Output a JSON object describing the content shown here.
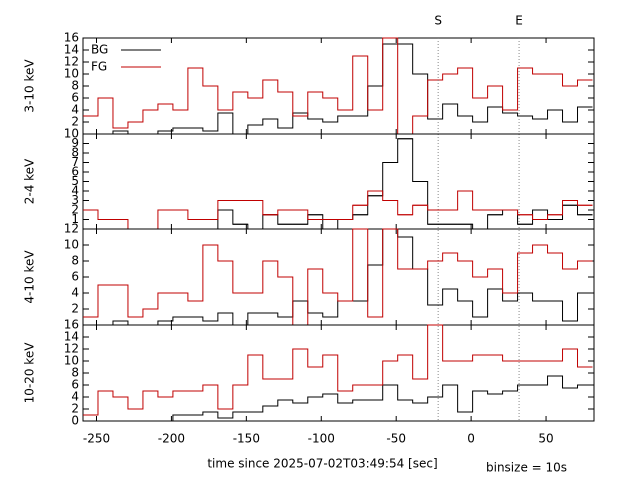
{
  "chart_data": [
    {
      "type": "histogram",
      "ylabel": "3-10 keV",
      "bins": [
        -259,
        -249,
        -239,
        -229,
        -219,
        -209,
        -199,
        -189,
        -179,
        -169,
        -159,
        -149,
        -139,
        -129,
        -119,
        -109,
        -99,
        -89,
        -79,
        -69,
        -59,
        -49,
        -39,
        -29,
        -19,
        -9,
        1,
        11,
        21,
        31,
        41,
        51,
        61,
        71,
        81
      ],
      "xlim": [
        -259,
        82
      ],
      "xticks": [
        -250,
        -200,
        -150,
        -100,
        -50,
        0,
        50
      ],
      "ylim": [
        0,
        16
      ],
      "yticks": [
        2,
        4,
        6,
        8,
        10,
        12,
        14,
        16
      ],
      "legend": "top-left",
      "markers": [
        {
          "label": "S",
          "x": -22
        },
        {
          "label": "E",
          "x": 32
        }
      ],
      "series": [
        {
          "name": "BG",
          "color": "#000000",
          "values": [
            0,
            0,
            0.5,
            0,
            0,
            0.5,
            1,
            1,
            0.5,
            3.5,
            0,
            1.5,
            2.5,
            1,
            3.5,
            2.5,
            2,
            3,
            3,
            8,
            15,
            15,
            10,
            2.5,
            5,
            3,
            2,
            4.5,
            3.5,
            3,
            2.5,
            4,
            2,
            4.5
          ]
        },
        {
          "name": "FG",
          "color": "#c00000",
          "values": [
            3,
            6,
            1,
            2,
            4,
            5,
            4,
            11,
            8,
            4,
            7,
            6,
            9,
            7,
            3,
            7,
            6,
            4,
            13,
            4,
            16,
            0,
            3,
            9,
            10,
            11,
            6,
            8,
            4,
            11,
            10,
            10,
            8,
            9
          ]
        }
      ]
    },
    {
      "type": "histogram",
      "ylabel": "2-4 keV",
      "bins": [
        -259,
        -249,
        -239,
        -229,
        -219,
        -209,
        -199,
        -189,
        -179,
        -169,
        -159,
        -149,
        -139,
        -129,
        -119,
        -109,
        -99,
        -89,
        -79,
        -69,
        -59,
        -49,
        -39,
        -29,
        -19,
        -9,
        1,
        11,
        21,
        31,
        41,
        51,
        61,
        71,
        81
      ],
      "xlim": [
        -259,
        82
      ],
      "xticks": [
        -250,
        -200,
        -150,
        -100,
        -50,
        0,
        50
      ],
      "ylim": [
        0,
        10
      ],
      "yticks": [
        1,
        2,
        3,
        4,
        5,
        6,
        7,
        8,
        9,
        10
      ],
      "series": [
        {
          "color": "#000000",
          "values": [
            0,
            0,
            0,
            0,
            0,
            0,
            0,
            0,
            0,
            2,
            0.5,
            0,
            1.5,
            0.5,
            0.5,
            1.5,
            0,
            1,
            1.5,
            3.5,
            7,
            9.5,
            5,
            0.5,
            0.5,
            0.5,
            0,
            1.5,
            2,
            0.5,
            2,
            1,
            2.5,
            1.5
          ]
        },
        {
          "color": "#c00000",
          "values": [
            2,
            1,
            1,
            0,
            0,
            2,
            2,
            1,
            1,
            3,
            3,
            3,
            1.5,
            2,
            2,
            1,
            1,
            1,
            2.5,
            4,
            3,
            1.5,
            2.5,
            2,
            2,
            4,
            2,
            2,
            2,
            1.5,
            1,
            1.5,
            3,
            2.5
          ]
        }
      ]
    },
    {
      "type": "histogram",
      "ylabel": "4-10 keV",
      "bins": [
        -259,
        -249,
        -239,
        -229,
        -219,
        -209,
        -199,
        -189,
        -179,
        -169,
        -159,
        -149,
        -139,
        -129,
        -119,
        -109,
        -99,
        -89,
        -79,
        -69,
        -59,
        -49,
        -39,
        -29,
        -19,
        -9,
        1,
        11,
        21,
        31,
        41,
        51,
        61,
        71,
        81
      ],
      "xlim": [
        -259,
        82
      ],
      "xticks": [
        -250,
        -200,
        -150,
        -100,
        -50,
        0,
        50
      ],
      "ylim": [
        0,
        12
      ],
      "yticks": [
        2,
        4,
        6,
        8,
        10,
        12
      ],
      "series": [
        {
          "color": "#000000",
          "values": [
            0,
            0,
            0.5,
            0,
            0,
            0.5,
            1,
            1,
            0.5,
            1.5,
            0,
            1.5,
            1.5,
            1,
            3,
            1.5,
            1,
            3,
            3,
            7.5,
            12,
            11,
            7,
            2.5,
            4.5,
            3,
            1,
            4.5,
            3,
            4,
            3,
            3,
            0.5,
            4
          ]
        },
        {
          "color": "#c00000",
          "values": [
            1,
            5,
            5,
            1,
            2,
            4,
            4,
            3,
            10,
            8,
            4,
            4,
            8,
            6,
            0,
            7,
            4,
            3,
            12,
            1,
            12,
            7,
            7,
            8,
            9,
            8,
            6,
            7,
            4,
            9,
            10,
            9,
            7,
            8
          ]
        }
      ]
    },
    {
      "type": "histogram",
      "ylabel": "10-20 keV",
      "bins": [
        -259,
        -249,
        -239,
        -229,
        -219,
        -209,
        -199,
        -189,
        -179,
        -169,
        -159,
        -149,
        -139,
        -129,
        -119,
        -109,
        -99,
        -89,
        -79,
        -69,
        -59,
        -49,
        -39,
        -29,
        -19,
        -9,
        1,
        11,
        21,
        31,
        41,
        51,
        61,
        71,
        81
      ],
      "xlim": [
        -259,
        82
      ],
      "xticks": [
        -250,
        -200,
        -150,
        -100,
        -50,
        0,
        50
      ],
      "ylim": [
        0,
        16
      ],
      "yticks": [
        0,
        2,
        4,
        6,
        8,
        10,
        12,
        14,
        16
      ],
      "xlabel": "time since 2025-07-02T03:49:54 [sec]",
      "annotation": "binsize = 10s",
      "series": [
        {
          "color": "#000000",
          "values": [
            0,
            0,
            0,
            0,
            0,
            0,
            1,
            1,
            1.5,
            0.5,
            1.5,
            1.5,
            2.5,
            3.5,
            3,
            4,
            4.5,
            3,
            3.5,
            3.5,
            6,
            3.5,
            3,
            4,
            6,
            1.5,
            5,
            4.5,
            5,
            6,
            6,
            7.5,
            5.5,
            6
          ]
        },
        {
          "color": "#c00000",
          "values": [
            1,
            5,
            4,
            2,
            5,
            4,
            5,
            5,
            6,
            2,
            6,
            11,
            7,
            7,
            12,
            9,
            11,
            5,
            6,
            6,
            10,
            11,
            7,
            16,
            10,
            10,
            11,
            11,
            10,
            10,
            10,
            10,
            12,
            9
          ]
        }
      ]
    }
  ]
}
